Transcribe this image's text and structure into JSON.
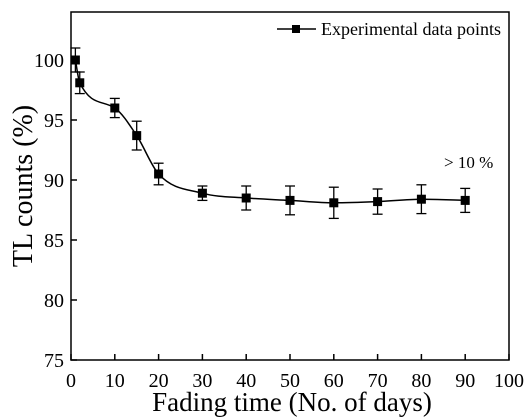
{
  "chart_data": {
    "type": "line",
    "xlabel": "Fading time (No. of days)",
    "ylabel": "TL counts (%)",
    "xlim": [
      0,
      100
    ],
    "ylim": [
      75,
      104
    ],
    "xticks": [
      0,
      10,
      20,
      30,
      40,
      50,
      60,
      70,
      80,
      90,
      100
    ],
    "yticks": [
      75,
      80,
      85,
      90,
      95,
      100
    ],
    "grid": false,
    "legend_position": "top-right",
    "series": [
      {
        "name": "Experimental data points",
        "color": "#000000",
        "x": [
          1,
          2,
          10,
          15,
          20,
          30,
          40,
          50,
          60,
          70,
          80,
          90
        ],
        "y": [
          100,
          98.1,
          96,
          93.7,
          90.5,
          88.9,
          88.5,
          88.3,
          88.1,
          88.2,
          88.4,
          88.3
        ],
        "y_error": [
          1.0,
          0.9,
          0.8,
          1.2,
          0.9,
          0.6,
          1.0,
          1.2,
          1.3,
          1.05,
          1.2,
          1.0
        ]
      }
    ],
    "annotations": [
      "> 10 %"
    ]
  }
}
